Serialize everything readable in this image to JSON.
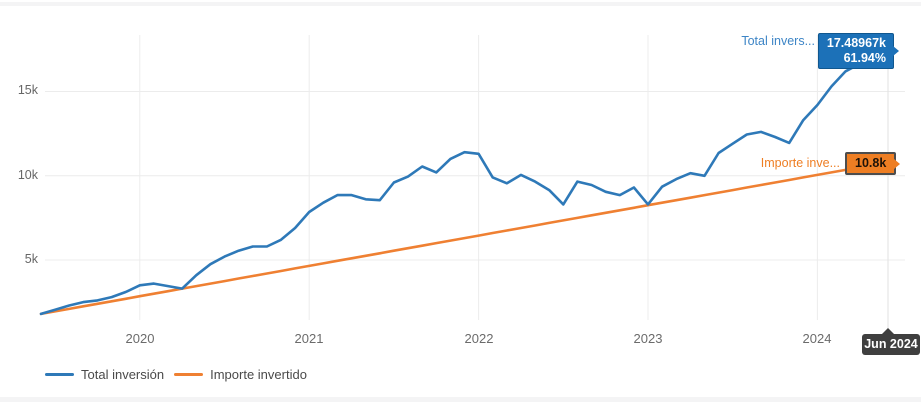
{
  "chart_data": {
    "type": "line",
    "x_axis": {
      "tick_labels": [
        "2020",
        "2021",
        "2022",
        "2023",
        "2024"
      ],
      "tick_month_indices": [
        7,
        19,
        31,
        43,
        55
      ],
      "start": "Jun 2019",
      "end": "Jun 2024",
      "points": "monthly",
      "crosshair_at": "Jun 2024"
    },
    "y_axis": {
      "ticks": [
        {
          "label": "5k",
          "value": 5
        },
        {
          "label": "10k",
          "value": 10
        },
        {
          "label": "15k",
          "value": 15
        }
      ],
      "range_k": [
        0,
        18.6
      ],
      "units": "k"
    },
    "grid": true,
    "legend_position": "bottom-left",
    "series": [
      {
        "name": "Total inversión",
        "color": "#2e79b8",
        "final_value": "17.48967k",
        "final_pct": "61.94%",
        "values_k": [
          1.8,
          2.05,
          2.3,
          2.5,
          2.6,
          2.8,
          3.1,
          3.5,
          3.6,
          3.45,
          3.3,
          4.1,
          4.75,
          5.2,
          5.55,
          5.8,
          5.8,
          6.2,
          6.9,
          7.85,
          8.4,
          8.85,
          8.85,
          8.6,
          8.55,
          9.6,
          9.95,
          10.55,
          10.2,
          11.0,
          11.4,
          11.3,
          9.9,
          9.55,
          10.05,
          9.65,
          9.15,
          8.3,
          9.65,
          9.45,
          9.05,
          8.85,
          9.3,
          8.3,
          9.35,
          9.8,
          10.15,
          10.0,
          11.35,
          11.9,
          12.45,
          12.6,
          12.3,
          11.95,
          13.3,
          14.2,
          15.3,
          16.2,
          16.65,
          17.05,
          17.48967
        ]
      },
      {
        "name": "Importe invertido",
        "color": "#ef8032",
        "final_value": "10.8k",
        "values_k": [
          1.8,
          1.95,
          2.1,
          2.25,
          2.4,
          2.55,
          2.7,
          2.85,
          3.0,
          3.15,
          3.3,
          3.45,
          3.6,
          3.75,
          3.9,
          4.05,
          4.2,
          4.35,
          4.5,
          4.65,
          4.8,
          4.95,
          5.1,
          5.25,
          5.4,
          5.55,
          5.7,
          5.85,
          6.0,
          6.15,
          6.3,
          6.45,
          6.6,
          6.75,
          6.9,
          7.05,
          7.2,
          7.35,
          7.5,
          7.65,
          7.8,
          7.95,
          8.1,
          8.25,
          8.4,
          8.55,
          8.7,
          8.85,
          9.0,
          9.15,
          9.3,
          9.45,
          9.6,
          9.75,
          9.9,
          10.05,
          10.2,
          10.35,
          10.5,
          10.65,
          10.8
        ]
      }
    ]
  },
  "overlays": {
    "series_labels": {
      "total": "Total invers...",
      "importe": "Importe inve..."
    },
    "total_badge": {
      "value": "17.48967k",
      "pct": "61.94%",
      "color": "#1c71b8"
    },
    "importe_badge": {
      "value": "10.8k",
      "color": "#ee7e23"
    },
    "x_tooltip": {
      "text": "Jun 2024",
      "color": "#3f3f3f"
    }
  },
  "legend": {
    "items": [
      {
        "label": "Total inversión",
        "color": "#2e79b8"
      },
      {
        "label": "Importe invertido",
        "color": "#ef8032"
      }
    ]
  }
}
